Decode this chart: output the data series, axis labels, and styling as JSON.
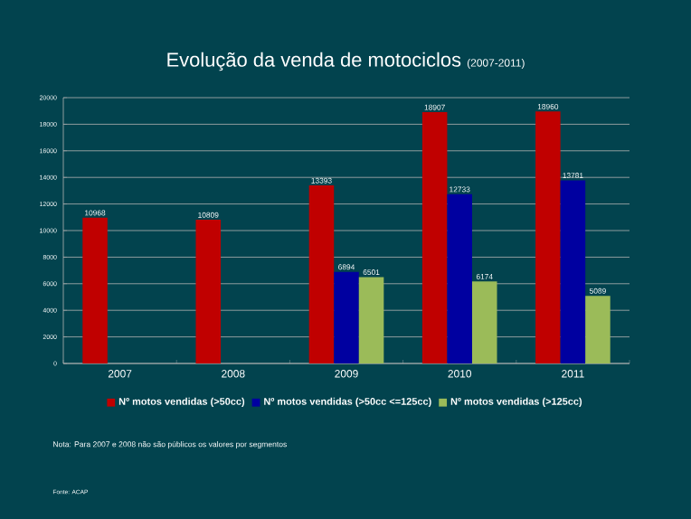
{
  "chart_data": {
    "type": "bar",
    "title": "Evolução da venda de motociclos",
    "subtitle": "(2007-2011)",
    "categories": [
      "2007",
      "2008",
      "2009",
      "2010",
      "2011"
    ],
    "series": [
      {
        "name": "Nº motos vendidas (>50cc)",
        "color": "#c00000",
        "values": [
          10968,
          10809,
          13393,
          18907,
          18960
        ]
      },
      {
        "name": "Nº motos vendidas (>50cc <=125cc)",
        "color": "#0000a0",
        "values": [
          null,
          null,
          6894,
          12733,
          13781
        ]
      },
      {
        "name": "Nº motos vendidas (>125cc)",
        "color": "#9bbb59",
        "values": [
          null,
          null,
          6501,
          6174,
          5089
        ]
      }
    ],
    "ylim": [
      0,
      20000
    ],
    "yticks": [
      0,
      2000,
      4000,
      6000,
      8000,
      10000,
      12000,
      14000,
      16000,
      18000,
      20000
    ],
    "grid": "y",
    "legend": "bottom",
    "data_labels": true,
    "annotations": [
      "Nota: Para 2007 e 2008 não são públicos os valores por segmentos",
      "Fonte: ACAP"
    ]
  }
}
